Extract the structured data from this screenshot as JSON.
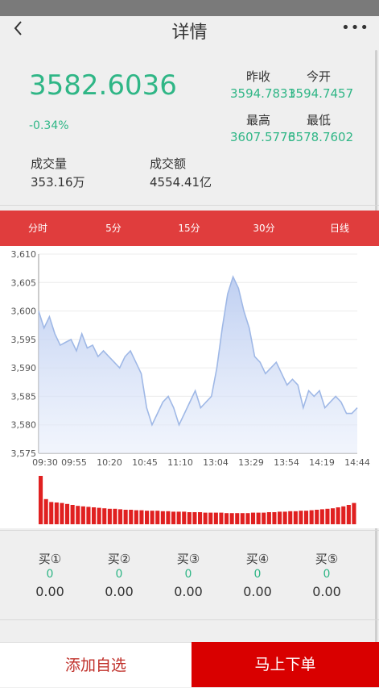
{
  "nav": {
    "title": "详情",
    "back_icon": "chevron-left-icon",
    "more_icon": "more-horizontal-icon"
  },
  "quote": {
    "price": "3582.6036",
    "change": "-0.34%",
    "prev_close_label": "昨收",
    "prev_close": "3594.7831",
    "open_label": "今开",
    "open": "3594.7457",
    "high_label": "最高",
    "high": "3607.5776",
    "low_label": "最低",
    "low": "3578.7602",
    "volume_label": "成交量",
    "volume": "353.16万",
    "turnover_label": "成交额",
    "turnover": "4554.41亿"
  },
  "tabs": [
    {
      "label": "分时",
      "active": true
    },
    {
      "label": "5分"
    },
    {
      "label": "15分"
    },
    {
      "label": "30分"
    },
    {
      "label": "日线"
    }
  ],
  "chart_data": {
    "type": "area",
    "ylim": [
      3575,
      3610
    ],
    "y_ticks": [
      "3,610",
      "3,605",
      "3,600",
      "3,595",
      "3,590",
      "3,585",
      "3,580",
      "3,575"
    ],
    "x_ticks": [
      "09:30",
      "09:55",
      "10:20",
      "10:45",
      "11:10",
      "13:04",
      "13:29",
      "13:54",
      "14:19",
      "14:44"
    ],
    "series": [
      {
        "values": [
          3600,
          3597,
          3599,
          3596,
          3594,
          3594.5,
          3595,
          3593,
          3596,
          3593.5,
          3594,
          3592,
          3593,
          3592,
          3591,
          3590,
          3592,
          3593,
          3591,
          3589,
          3583,
          3580,
          3582,
          3584,
          3585,
          3583,
          3580,
          3582,
          3584,
          3586,
          3583,
          3584,
          3585,
          3590,
          3597,
          3603,
          3606,
          3604,
          3600,
          3597,
          3592,
          3591,
          3589,
          3590,
          3591,
          3589,
          3587,
          3588,
          3587,
          3583,
          3586,
          3585,
          3586,
          3583,
          3584,
          3585,
          3584,
          3582,
          3582,
          3583
        ]
      },
      {
        "name": "volume",
        "values": [
          100,
          52,
          46,
          45,
          44,
          42,
          40,
          38,
          37,
          36,
          35,
          34,
          33,
          32,
          32,
          31,
          30,
          30,
          29,
          29,
          28,
          28,
          28,
          27,
          27,
          26,
          26,
          26,
          25,
          25,
          25,
          24,
          24,
          24,
          24,
          23,
          23,
          23,
          23,
          23,
          24,
          24,
          24,
          25,
          25,
          26,
          26,
          27,
          27,
          28,
          28,
          29,
          30,
          31,
          32,
          33,
          35,
          37,
          40,
          44
        ]
      }
    ]
  },
  "orderbook": [
    {
      "label": "买①",
      "qty": "0",
      "price": "0.00"
    },
    {
      "label": "买②",
      "qty": "0",
      "price": "0.00"
    },
    {
      "label": "买③",
      "qty": "0",
      "price": "0.00"
    },
    {
      "label": "买④",
      "qty": "0",
      "price": "0.00"
    },
    {
      "label": "买⑤",
      "qty": "0",
      "price": "0.00"
    }
  ],
  "actions": {
    "watch_label": "添加自选",
    "order_label": "马上下单"
  },
  "colors": {
    "up_green": "#2fb686",
    "brand_red": "#e03d3d",
    "order_red": "#d90000",
    "line_blue": "#9fb8e6",
    "volume_red": "#e02020"
  }
}
